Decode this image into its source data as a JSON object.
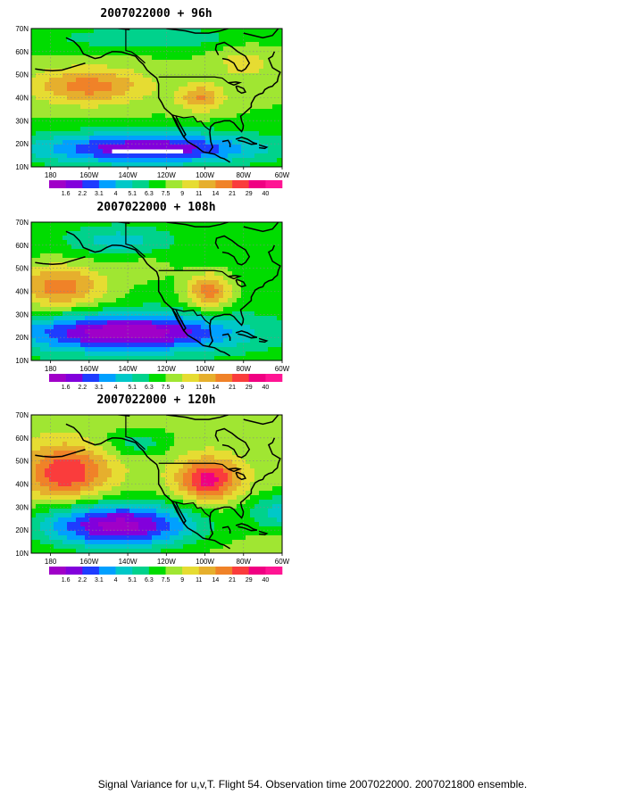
{
  "panels": [
    {
      "title": "2007022000 + 96h",
      "field": "f96"
    },
    {
      "title": "2007022000 + 108h",
      "field": "f108"
    },
    {
      "title": "2007022000 + 120h",
      "field": "f120"
    }
  ],
  "lat_labels": [
    "70N",
    "60N",
    "50N",
    "40N",
    "30N",
    "20N",
    "10N"
  ],
  "lon_labels": [
    "180",
    "160W",
    "140W",
    "120W",
    "100W",
    "80W",
    "60W"
  ],
  "colorbar": {
    "levels": [
      "1.6",
      "2.2",
      "3.1",
      "4",
      "5.1",
      "6.3",
      "7.5",
      "9",
      "11",
      "14",
      "21",
      "29",
      "40"
    ],
    "colors": [
      "#a000c8",
      "#8200dc",
      "#1e3cff",
      "#00a0ff",
      "#00c8c8",
      "#00d28c",
      "#00dc00",
      "#a0e632",
      "#e6dc32",
      "#e6af2d",
      "#f08228",
      "#fa3c3c",
      "#f00082",
      "#ff1493"
    ]
  },
  "footer": "Signal Variance for u,v,T. Flight 54. Observation time 2007022000. 2007021800 ensemble."
}
